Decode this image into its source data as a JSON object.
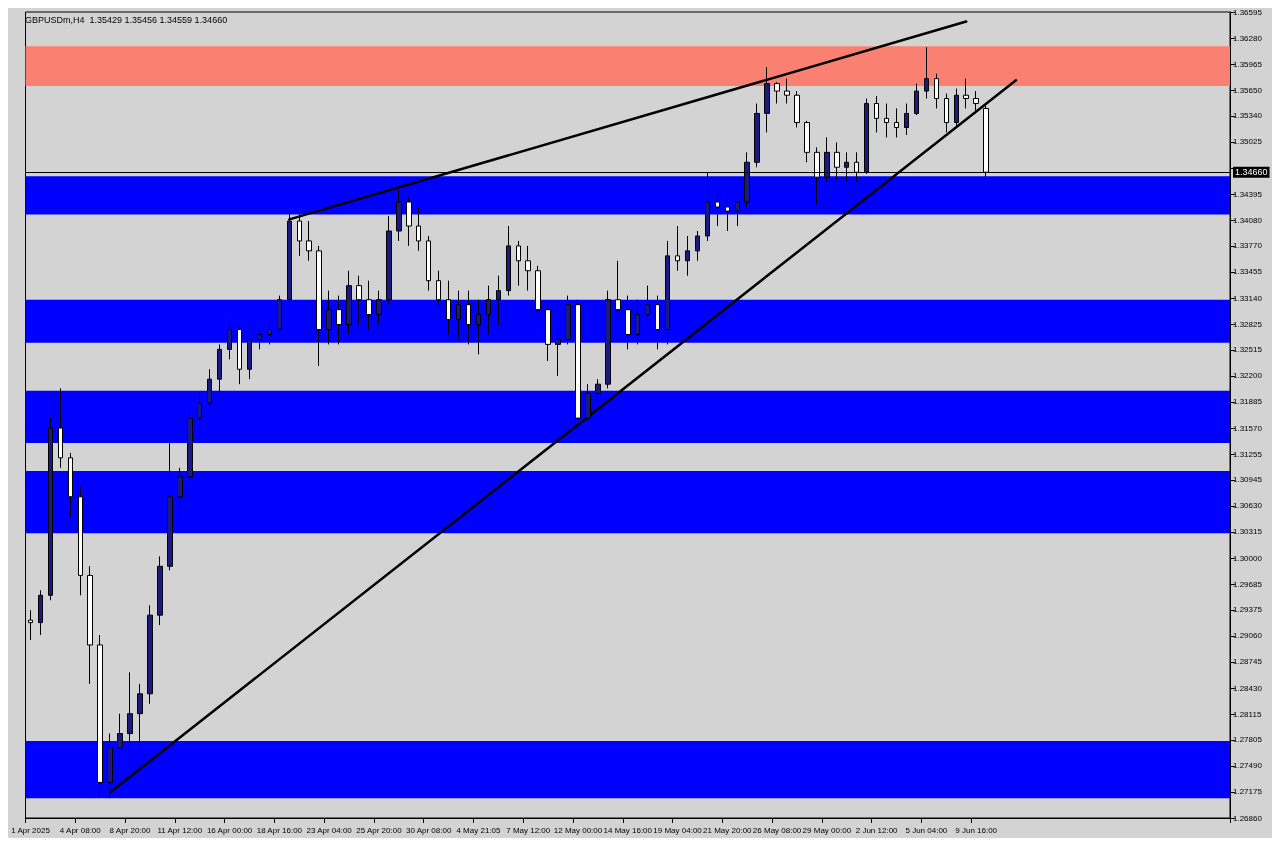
{
  "chart_data": {
    "type": "candlestick",
    "title": "GBPUSDm,H4  1.35429 1.35456 1.34559 1.34660",
    "categories": [
      "1 Apr 2025",
      null,
      null,
      null,
      null,
      "4 Apr 08:00",
      null,
      null,
      null,
      null,
      "8 Apr 20:00",
      null,
      null,
      null,
      null,
      "11 Apr 12:00",
      null,
      null,
      null,
      null,
      "16 Apr 00:00",
      null,
      null,
      null,
      null,
      "18 Apr 16:00",
      null,
      null,
      null,
      null,
      "23 Apr 04:00",
      null,
      null,
      null,
      null,
      "25 Apr 20:00",
      null,
      null,
      null,
      null,
      "30 Apr 08:00",
      null,
      null,
      null,
      null,
      "4 May 21:05",
      null,
      null,
      null,
      null,
      "7 May 12:00",
      null,
      null,
      null,
      null,
      "12 May 00:00",
      null,
      null,
      null,
      null,
      "14 May 16:00",
      null,
      null,
      null,
      null,
      "19 May 04:00",
      null,
      null,
      null,
      null,
      "21 May 20:00",
      null,
      null,
      null,
      null,
      "26 May 08:00",
      null,
      null,
      null,
      null,
      "29 May 00:00",
      null,
      null,
      null,
      null,
      "2 Jun 12:00",
      null,
      null,
      null,
      null,
      "5 Jun 04:00",
      null,
      null,
      null,
      null,
      "9 Jun 16:00",
      null,
      null,
      null,
      null,
      null,
      null,
      null,
      null,
      null,
      null,
      null,
      null,
      null,
      null,
      null,
      null,
      null,
      null,
      null,
      null,
      null,
      null,
      null,
      null,
      null
    ],
    "ohlc": [
      [
        1.2925,
        1.2937,
        1.2901,
        1.2922
      ],
      [
        1.2922,
        1.2961,
        1.2907,
        1.2955
      ],
      [
        1.2955,
        1.3169,
        1.2949,
        1.3157
      ],
      [
        1.3157,
        1.3205,
        1.3109,
        1.3121
      ],
      [
        1.3121,
        1.3127,
        1.305,
        1.3074
      ],
      [
        1.3074,
        1.3086,
        1.2955,
        1.2979
      ],
      [
        1.2979,
        1.299,
        1.2848,
        1.2895
      ],
      [
        1.2895,
        1.2907,
        1.2711,
        1.2729
      ],
      [
        1.2729,
        1.2788,
        1.271,
        1.2771
      ],
      [
        1.2771,
        1.2812,
        1.2753,
        1.2788
      ],
      [
        1.2788,
        1.2862,
        1.2759,
        1.2812
      ],
      [
        1.2812,
        1.2848,
        1.2765,
        1.2836
      ],
      [
        1.2836,
        1.2943,
        1.2824,
        1.2931
      ],
      [
        1.2931,
        1.3002,
        1.2919,
        1.299
      ],
      [
        1.299,
        1.3144,
        1.2985,
        1.3074
      ],
      [
        1.3074,
        1.3109,
        1.3044,
        1.3098
      ],
      [
        1.3098,
        1.3181,
        1.3092,
        1.3169
      ],
      [
        1.3169,
        1.3199,
        1.3145,
        1.3187
      ],
      [
        1.3187,
        1.3228,
        1.3175,
        1.3216
      ],
      [
        1.3216,
        1.3258,
        1.3199,
        1.3252
      ],
      [
        1.3252,
        1.329,
        1.324,
        1.3276
      ],
      [
        1.3276,
        1.3282,
        1.321,
        1.3228
      ],
      [
        1.3228,
        1.327,
        1.3216,
        1.3264
      ],
      [
        1.3264,
        1.3282,
        1.3252,
        1.327
      ],
      [
        1.327,
        1.3288,
        1.3258,
        1.3276
      ],
      [
        1.3276,
        1.3317,
        1.3264,
        1.3312
      ],
      [
        1.3312,
        1.3419,
        1.3306,
        1.3407
      ],
      [
        1.3407,
        1.3416,
        1.3365,
        1.3383
      ],
      [
        1.3383,
        1.3407,
        1.3359,
        1.3371
      ],
      [
        1.3371,
        1.3377,
        1.3232,
        1.3276
      ],
      [
        1.3276,
        1.3323,
        1.3258,
        1.33
      ],
      [
        1.33,
        1.3317,
        1.3258,
        1.3282
      ],
      [
        1.3282,
        1.3347,
        1.327,
        1.3329
      ],
      [
        1.3329,
        1.3341,
        1.3282,
        1.3312
      ],
      [
        1.3312,
        1.3335,
        1.3276,
        1.3294
      ],
      [
        1.3294,
        1.3323,
        1.3282,
        1.3312
      ],
      [
        1.3312,
        1.3413,
        1.3306,
        1.3395
      ],
      [
        1.3395,
        1.3445,
        1.3383,
        1.343
      ],
      [
        1.343,
        1.3436,
        1.3377,
        1.3401
      ],
      [
        1.3401,
        1.3424,
        1.3371,
        1.3383
      ],
      [
        1.3383,
        1.3389,
        1.3323,
        1.3335
      ],
      [
        1.3335,
        1.3347,
        1.3306,
        1.3312
      ],
      [
        1.3312,
        1.3335,
        1.327,
        1.3288
      ],
      [
        1.3288,
        1.3323,
        1.3264,
        1.3306
      ],
      [
        1.3306,
        1.3323,
        1.3258,
        1.3282
      ],
      [
        1.3282,
        1.3312,
        1.3246,
        1.3294
      ],
      [
        1.3294,
        1.3329,
        1.327,
        1.3312
      ],
      [
        1.3312,
        1.3341,
        1.3282,
        1.3323
      ],
      [
        1.3323,
        1.3401,
        1.3317,
        1.3377
      ],
      [
        1.3377,
        1.3383,
        1.3329,
        1.3359
      ],
      [
        1.3359,
        1.3377,
        1.3323,
        1.3347
      ],
      [
        1.3347,
        1.3353,
        1.3276,
        1.33
      ],
      [
        1.33,
        1.3306,
        1.3238,
        1.3258
      ],
      [
        1.3258,
        1.3282,
        1.322,
        1.3264
      ],
      [
        1.3264,
        1.3317,
        1.3258,
        1.3306
      ],
      [
        1.3306,
        1.3312,
        1.3145,
        1.3169
      ],
      [
        1.3169,
        1.321,
        1.3163,
        1.3199
      ],
      [
        1.3199,
        1.3216,
        1.3181,
        1.321
      ],
      [
        1.321,
        1.3323,
        1.3205,
        1.3312
      ],
      [
        1.3312,
        1.3359,
        1.3288,
        1.33
      ],
      [
        1.33,
        1.3317,
        1.3252,
        1.327
      ],
      [
        1.327,
        1.3312,
        1.3258,
        1.3294
      ],
      [
        1.3294,
        1.3329,
        1.3276,
        1.3306
      ],
      [
        1.3306,
        1.3317,
        1.3252,
        1.3276
      ],
      [
        1.3276,
        1.3383,
        1.3258,
        1.3365
      ],
      [
        1.3365,
        1.3401,
        1.3347,
        1.3359
      ],
      [
        1.3359,
        1.3389,
        1.3341,
        1.3371
      ],
      [
        1.3371,
        1.3395,
        1.3359,
        1.3389
      ],
      [
        1.3389,
        1.3466,
        1.3383,
        1.343
      ],
      [
        1.343,
        1.3448,
        1.3401,
        1.3424
      ],
      [
        1.3424,
        1.3448,
        1.3395,
        1.3419
      ],
      [
        1.3419,
        1.3436,
        1.3401,
        1.343
      ],
      [
        1.343,
        1.349,
        1.3424,
        1.3478
      ],
      [
        1.3478,
        1.3549,
        1.3472,
        1.3537
      ],
      [
        1.3537,
        1.3593,
        1.3514,
        1.3573
      ],
      [
        1.3573,
        1.3575,
        1.3549,
        1.3564
      ],
      [
        1.3564,
        1.3579,
        1.3549,
        1.3559
      ],
      [
        1.3559,
        1.3564,
        1.352,
        1.3526
      ],
      [
        1.3526,
        1.3528,
        1.3478,
        1.349
      ],
      [
        1.349,
        1.3496,
        1.3427,
        1.346
      ],
      [
        1.346,
        1.3508,
        1.3454,
        1.349
      ],
      [
        1.349,
        1.3502,
        1.3457,
        1.3472
      ],
      [
        1.3472,
        1.349,
        1.3454,
        1.3478
      ],
      [
        1.3478,
        1.349,
        1.3454,
        1.3466
      ],
      [
        1.3466,
        1.3555,
        1.3464,
        1.3549
      ],
      [
        1.3549,
        1.3558,
        1.3514,
        1.3531
      ],
      [
        1.3531,
        1.3549,
        1.3508,
        1.3526
      ],
      [
        1.3526,
        1.3543,
        1.3508,
        1.352
      ],
      [
        1.352,
        1.3549,
        1.3511,
        1.3537
      ],
      [
        1.3537,
        1.3573,
        1.3535,
        1.3564
      ],
      [
        1.3564,
        1.3617,
        1.3555,
        1.3579
      ],
      [
        1.3579,
        1.3585,
        1.3543,
        1.3555
      ],
      [
        1.3555,
        1.3561,
        1.3514,
        1.3526
      ],
      [
        1.3526,
        1.3567,
        1.352,
        1.3559
      ],
      [
        1.3559,
        1.3579,
        1.3543,
        1.3555
      ],
      [
        1.3555,
        1.3564,
        1.3537,
        1.3549
      ],
      [
        1.3543,
        1.3546,
        1.3456,
        1.3466
      ],
      null,
      null,
      null,
      null,
      null,
      null,
      null,
      null,
      null,
      null,
      null,
      null,
      null,
      null,
      null,
      null,
      null,
      null,
      null,
      null,
      null,
      null,
      null,
      null
    ],
    "series": [
      {
        "type": "line",
        "color": "#000000",
        "values": [
          null,
          null,
          null,
          null,
          null,
          null,
          null,
          null,
          null,
          null,
          null,
          null,
          null,
          null,
          null,
          null,
          null,
          null,
          null,
          null,
          null,
          null,
          null,
          null,
          null,
          null,
          1.3409,
          null,
          null,
          null,
          null,
          null,
          null,
          null,
          null,
          null,
          null,
          null,
          null,
          null,
          null,
          null,
          null,
          null,
          null,
          null,
          null,
          null,
          null,
          null,
          null,
          null,
          null,
          null,
          null,
          null,
          null,
          null,
          null,
          null,
          null,
          null,
          null,
          null,
          null,
          null,
          null,
          null,
          null,
          null,
          null,
          null,
          null,
          null,
          null,
          null,
          null,
          null,
          null,
          null,
          null,
          null,
          null,
          null,
          null,
          null,
          null,
          null,
          null,
          null,
          null,
          null,
          null,
          null,
          1.3648,
          null,
          null,
          null,
          null,
          null,
          null,
          null,
          null,
          null,
          null,
          null,
          null,
          null,
          null,
          null,
          null,
          null,
          null,
          null,
          null,
          null,
          null,
          null,
          null,
          null,
          null
        ]
      },
      {
        "type": "line",
        "color": "#000000",
        "values": [
          null,
          null,
          null,
          null,
          null,
          null,
          null,
          null,
          1.2717,
          null,
          null,
          null,
          null,
          null,
          null,
          null,
          null,
          null,
          null,
          null,
          null,
          null,
          null,
          null,
          null,
          null,
          null,
          null,
          null,
          null,
          null,
          null,
          null,
          null,
          null,
          null,
          null,
          null,
          null,
          null,
          null,
          null,
          null,
          null,
          null,
          null,
          null,
          null,
          null,
          null,
          null,
          null,
          null,
          null,
          null,
          null,
          null,
          null,
          null,
          null,
          null,
          null,
          null,
          null,
          null,
          null,
          null,
          null,
          null,
          null,
          null,
          null,
          null,
          null,
          null,
          null,
          null,
          null,
          null,
          null,
          null,
          null,
          null,
          null,
          null,
          null,
          null,
          null,
          null,
          null,
          null,
          null,
          null,
          null,
          null,
          null,
          null,
          null,
          null,
          1.3577,
          null,
          null,
          null,
          null,
          null,
          null,
          null,
          null,
          null,
          null,
          null,
          null,
          null,
          null,
          null,
          null,
          null,
          null,
          null,
          null,
          null
        ]
      }
    ],
    "ylim": [
      1.2686,
      1.36595
    ],
    "yticks": [
      {
        "value": 1.2686,
        "label": "1.26860"
      },
      {
        "value": 1.27175,
        "label": "1.27175"
      },
      {
        "value": 1.2749,
        "label": "1.27490"
      },
      {
        "value": 1.27805,
        "label": "1.27805"
      },
      {
        "value": 1.28115,
        "label": "1.28115"
      },
      {
        "value": 1.2843,
        "label": "1.28430"
      },
      {
        "value": 1.28745,
        "label": "1.28745"
      },
      {
        "value": 1.2906,
        "label": "1.29060"
      },
      {
        "value": 1.29375,
        "label": "1.29375"
      },
      {
        "value": 1.29685,
        "label": "1.29685"
      },
      {
        "value": 1.3,
        "label": "1.30000"
      },
      {
        "value": 1.30315,
        "label": "1.30315"
      },
      {
        "value": 1.3063,
        "label": "1.30630"
      },
      {
        "value": 1.30945,
        "label": "1.30945"
      },
      {
        "value": 1.31255,
        "label": "1.31255"
      },
      {
        "value": 1.3157,
        "label": "1.31570"
      },
      {
        "value": 1.31885,
        "label": "1.31885"
      },
      {
        "value": 1.322,
        "label": "1.32200"
      },
      {
        "value": 1.32515,
        "label": "1.32515"
      },
      {
        "value": 1.32825,
        "label": "1.32825"
      },
      {
        "value": 1.3314,
        "label": "1.33140"
      },
      {
        "value": 1.33455,
        "label": "1.33455"
      },
      {
        "value": 1.3377,
        "label": "1.33770"
      },
      {
        "value": 1.3408,
        "label": "1.34080"
      },
      {
        "value": 1.34395,
        "label": "1.34395"
      },
      {
        "value": 1.3471,
        "label": null
      },
      {
        "value": 1.35025,
        "label": "1.35025"
      },
      {
        "value": 1.3534,
        "label": "1.35340"
      },
      {
        "value": 1.3565,
        "label": "1.35650"
      },
      {
        "value": 1.35965,
        "label": "1.35965"
      },
      {
        "value": 1.3628,
        "label": "1.36280"
      },
      {
        "value": 1.36595,
        "label": "1.36595"
      }
    ],
    "bands": [
      {
        "axis": "y",
        "from": 1.357,
        "to": 1.3618,
        "color": "#fa8072"
      },
      {
        "axis": "y",
        "from": 1.3415,
        "to": 1.3461,
        "color": "#0000ff"
      },
      {
        "axis": "y",
        "from": 1.326,
        "to": 1.3312,
        "color": "#0000ff"
      },
      {
        "axis": "y",
        "from": 1.3139,
        "to": 1.3202,
        "color": "#0000ff"
      },
      {
        "axis": "y",
        "from": 1.303,
        "to": 1.3105,
        "color": "#0000ff"
      },
      {
        "axis": "y",
        "from": 1.271,
        "to": 1.2779,
        "color": "#0000ff"
      }
    ],
    "ref_lines": [
      {
        "axis": "y",
        "value": 1.3466,
        "label": "1.34660",
        "color": "#000000"
      }
    ]
  }
}
